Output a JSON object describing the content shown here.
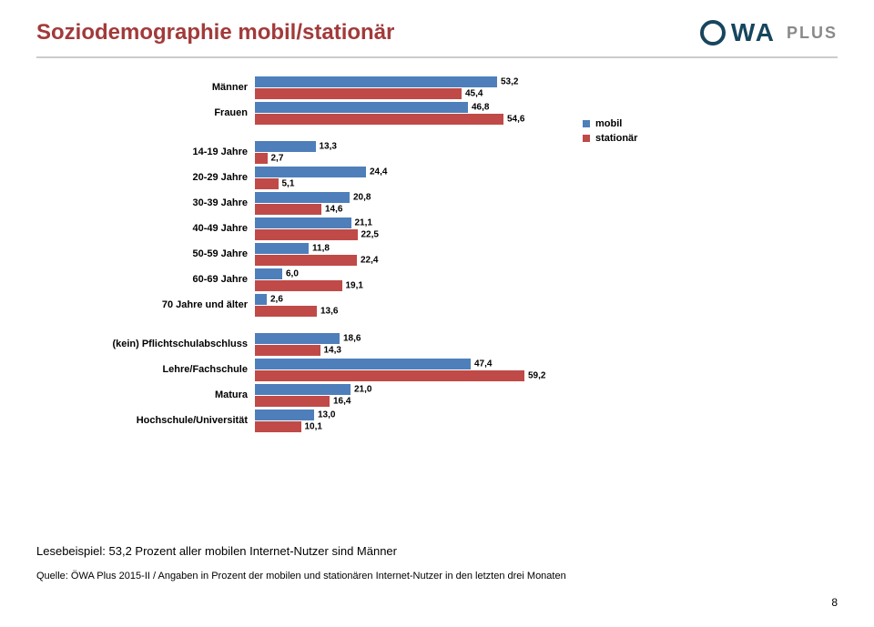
{
  "title": "Soziodemographie mobil/stationär",
  "logo": {
    "text": "WA",
    "plus": "PLUS"
  },
  "legend": {
    "mobil": "mobil",
    "stationar": "stationär"
  },
  "colors": {
    "mobil": "#4e7fba",
    "stationar": "#c04a47",
    "title": "#a23a3a",
    "logo": "#17455e",
    "plus": "#8a8a8a"
  },
  "chart": {
    "scale": 5.0,
    "groups": [
      {
        "items": [
          {
            "label": "Männer",
            "mobil": 53.2,
            "stationar": 45.4
          },
          {
            "label": "Frauen",
            "mobil": 46.8,
            "stationar": 54.6
          }
        ]
      },
      {
        "items": [
          {
            "label": "14-19 Jahre",
            "mobil": 13.3,
            "stationar": 2.7
          },
          {
            "label": "20-29 Jahre",
            "mobil": 24.4,
            "stationar": 5.1
          },
          {
            "label": "30-39 Jahre",
            "mobil": 20.8,
            "stationar": 14.6
          },
          {
            "label": "40-49 Jahre",
            "mobil": 21.1,
            "stationar": 22.5
          },
          {
            "label": "50-59 Jahre",
            "mobil": 11.8,
            "stationar": 22.4
          },
          {
            "label": "60-69 Jahre",
            "mobil": 6.0,
            "stationar": 19.1
          },
          {
            "label": "70 Jahre und älter",
            "mobil": 2.6,
            "stationar": 13.6
          }
        ]
      },
      {
        "items": [
          {
            "label": "(kein) Pflichtschulabschluss",
            "mobil": 18.6,
            "stationar": 14.3
          },
          {
            "label": "Lehre/Fachschule",
            "mobil": 47.4,
            "stationar": 59.2
          },
          {
            "label": "Matura",
            "mobil": 21.0,
            "stationar": 16.4
          },
          {
            "label": "Hochschule/Universität",
            "mobil": 13.0,
            "stationar": 10.1
          }
        ]
      }
    ]
  },
  "example": "Lesebeispiel: 53,2 Prozent aller mobilen Internet-Nutzer sind Männer",
  "source": "Quelle: ÖWA Plus 2015-II / Angaben in Prozent der mobilen und stationären Internet-Nutzer in den letzten drei Monaten",
  "pageNum": "8"
}
